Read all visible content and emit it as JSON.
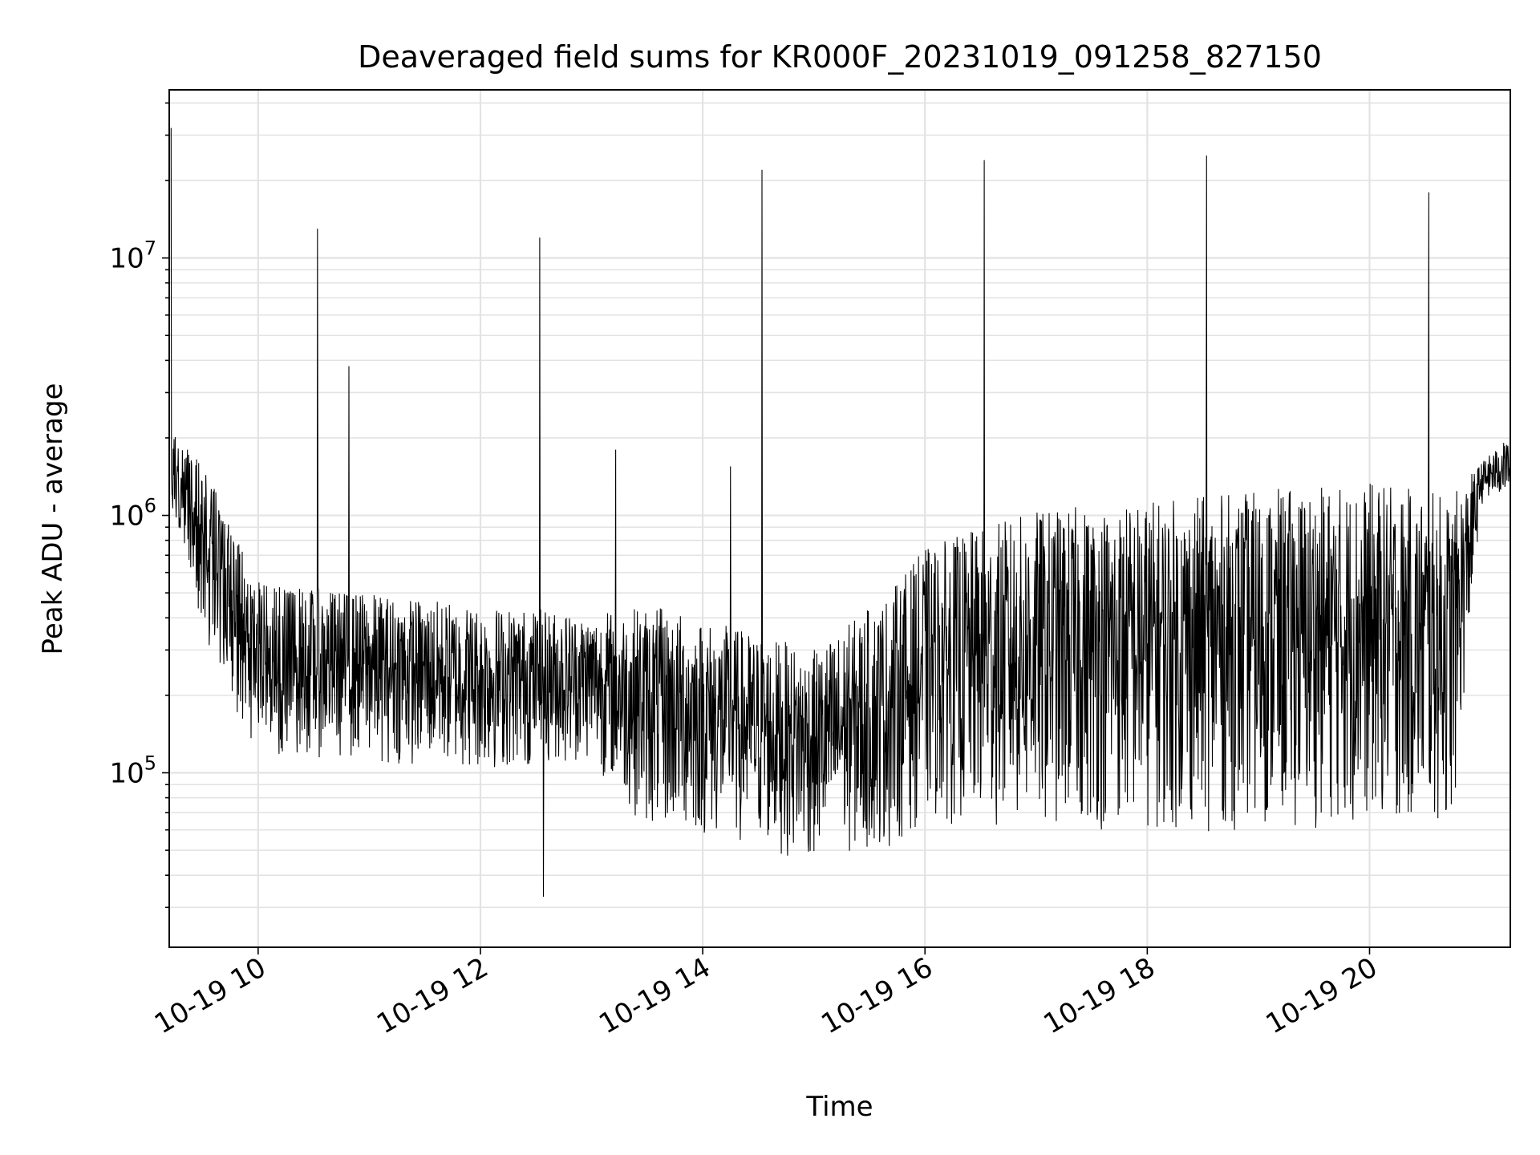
{
  "chart_data": {
    "type": "line",
    "title": "Deaveraged field sums for KR000F_20231019_091258_827150",
    "xlabel": "Time",
    "ylabel": "Peak ADU - average",
    "yscale": "log",
    "ylim": [
      21000,
      45000000
    ],
    "xlim": [
      "2023-10-19 09:12",
      "2023-10-19 21:16"
    ],
    "grid": true,
    "line_color": "#000000",
    "x_ticks": [
      {
        "label": "10-19 10",
        "value": "2023-10-19 10:00"
      },
      {
        "label": "10-19 12",
        "value": "2023-10-19 12:00"
      },
      {
        "label": "10-19 14",
        "value": "2023-10-19 14:00"
      },
      {
        "label": "10-19 16",
        "value": "2023-10-19 16:00"
      },
      {
        "label": "10-19 18",
        "value": "2023-10-19 18:00"
      },
      {
        "label": "10-19 20",
        "value": "2023-10-19 20:00"
      }
    ],
    "y_ticks": [
      {
        "base": "10",
        "exp": "5",
        "value": 100000
      },
      {
        "base": "10",
        "exp": "6",
        "value": 1000000
      },
      {
        "base": "10",
        "exp": "7",
        "value": 10000000
      }
    ],
    "envelope": {
      "x": [
        "2023-10-19 09:13",
        "2023-10-19 09:30",
        "2023-10-19 10:00",
        "2023-10-19 11:00",
        "2023-10-19 12:00",
        "2023-10-19 13:00",
        "2023-10-19 13:30",
        "2023-10-19 14:00",
        "2023-10-19 15:00",
        "2023-10-19 15:40",
        "2023-10-19 16:00",
        "2023-10-19 16:30",
        "2023-10-19 17:00",
        "2023-10-19 18:00",
        "2023-10-19 19:00",
        "2023-10-19 20:00",
        "2023-10-19 20:45",
        "2023-10-19 21:00",
        "2023-10-19 21:15"
      ],
      "high": [
        2200000,
        1600000,
        550000,
        500000,
        450000,
        420000,
        450000,
        400000,
        300000,
        500000,
        750000,
        900000,
        1050000,
        1150000,
        1250000,
        1350000,
        1200000,
        1600000,
        2000000
      ],
      "low": [
        1100000,
        300000,
        120000,
        110000,
        100000,
        110000,
        60000,
        55000,
        45000,
        50000,
        65000,
        60000,
        60000,
        58000,
        60000,
        62000,
        60000,
        1100000,
        1200000
      ]
    },
    "spikes": [
      {
        "x": "2023-10-19 09:13",
        "y": 32000000
      },
      {
        "x": "2023-10-19 10:32",
        "y": 13000000
      },
      {
        "x": "2023-10-19 10:49",
        "y": 3800000
      },
      {
        "x": "2023-10-19 12:32",
        "y": 12000000
      },
      {
        "x": "2023-10-19 13:13",
        "y": 1800000
      },
      {
        "x": "2023-10-19 14:15",
        "y": 1550000
      },
      {
        "x": "2023-10-19 14:32",
        "y": 22000000
      },
      {
        "x": "2023-10-19 16:32",
        "y": 24000000
      },
      {
        "x": "2023-10-19 18:32",
        "y": 25000000
      },
      {
        "x": "2023-10-19 20:32",
        "y": 18000000
      }
    ],
    "dips": [
      {
        "x": "2023-10-19 12:34",
        "y": 33000
      }
    ]
  }
}
